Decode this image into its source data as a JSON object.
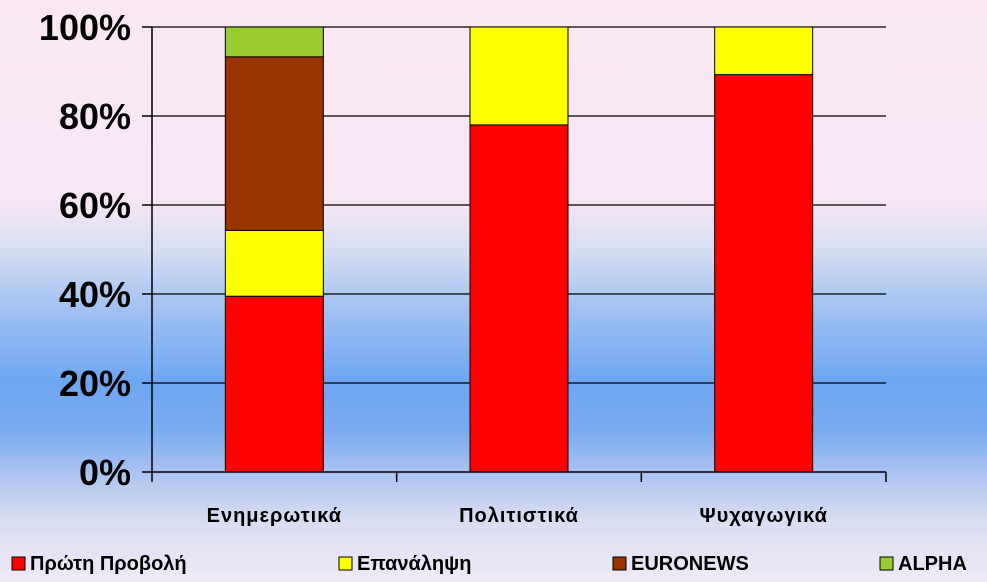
{
  "chart_data": {
    "type": "bar",
    "stacked": true,
    "percent": true,
    "categories": [
      "Ενημερωτικά",
      "Πολιτιστικά",
      "Ψυχαγωγικά"
    ],
    "series": [
      {
        "name": "Πρώτη Προβολή",
        "color": "#ff0000",
        "values": [
          39.5,
          78,
          89.3
        ]
      },
      {
        "name": "Επανάληψη",
        "color": "#ffff00",
        "values": [
          14.8,
          22,
          10.7
        ]
      },
      {
        "name": "EURONEWS",
        "color": "#993300",
        "values": [
          39,
          0,
          0
        ]
      },
      {
        "name": "ALPHA",
        "color": "#99cc33",
        "values": [
          6.7,
          0,
          0
        ]
      }
    ],
    "yticks": [
      "0%",
      "20%",
      "40%",
      "60%",
      "80%",
      "100%"
    ],
    "ylim": [
      0,
      100
    ],
    "grid": true,
    "legend_position": "bottom"
  }
}
